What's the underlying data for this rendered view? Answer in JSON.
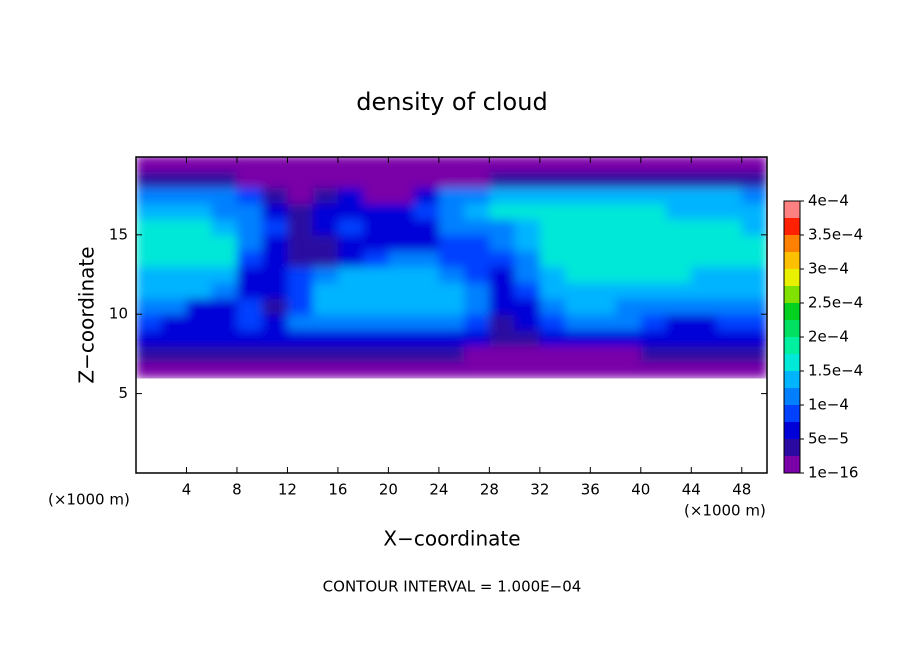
{
  "chart_data": {
    "type": "contour",
    "title": "density of cloud",
    "xlabel": "X−coordinate",
    "ylabel": "Z−coordinate",
    "xlabel_unit": "(×1000 m)",
    "ylabel_unit": "(×1000 m)",
    "note": "CONTOUR INTERVAL = 1.000E−04",
    "xlim": [
      0,
      50
    ],
    "ylim": [
      0,
      19.9
    ],
    "xticks": [
      4,
      8,
      12,
      16,
      20,
      24,
      28,
      32,
      36,
      40,
      44,
      48
    ],
    "yticks": [
      5,
      10,
      15
    ],
    "x": [
      1,
      3,
      5,
      7,
      9,
      11,
      13,
      15,
      17,
      19,
      21,
      23,
      25,
      27,
      29,
      31,
      33,
      35,
      37,
      39,
      41,
      43,
      45,
      47,
      49
    ],
    "y": [
      6.5,
      7.5,
      8.5,
      9.5,
      10.5,
      11.5,
      12.5,
      13.5,
      14.5,
      15.5,
      16.5,
      17.5,
      18.5,
      19.5
    ],
    "z": [
      [
        5e-06,
        5e-06,
        5e-06,
        5e-06,
        5e-06,
        5e-06,
        5e-06,
        5e-06,
        5e-06,
        5e-06,
        5e-06,
        5e-06,
        5e-06,
        5e-06,
        5e-06,
        5e-06,
        5e-06,
        5e-06,
        5e-06,
        5e-06,
        5e-06,
        5e-06,
        5e-06,
        5e-06,
        5e-06
      ],
      [
        3e-05,
        3e-05,
        3e-05,
        3e-05,
        3e-05,
        3e-05,
        3e-05,
        3e-05,
        3e-05,
        3e-05,
        3e-05,
        3e-05,
        3e-05,
        2e-05,
        1e-05,
        1e-05,
        1e-05,
        2e-05,
        2e-05,
        2e-05,
        3e-05,
        3e-05,
        3e-05,
        3e-05,
        3e-05
      ],
      [
        5e-05,
        5e-05,
        5e-05,
        5e-05,
        5e-05,
        5e-05,
        6e-05,
        6e-05,
        6e-05,
        6e-05,
        6e-05,
        6e-05,
        6e-05,
        5e-05,
        4e-05,
        4e-05,
        5e-05,
        5e-05,
        5e-05,
        5e-05,
        5e-05,
        5e-05,
        5e-05,
        5e-05,
        5e-05
      ],
      [
        8e-05,
        7e-05,
        6e-05,
        7e-05,
        8e-05,
        5e-05,
        0.00011,
        0.00012,
        0.00012,
        0.00012,
        0.00012,
        0.00012,
        0.00012,
        8e-05,
        4e-05,
        6e-05,
        9e-05,
        0.0001,
        0.00011,
        0.0001,
        8e-05,
        6e-05,
        7e-05,
        9e-05,
        8e-05
      ],
      [
        0.00012,
        0.0001,
        5e-05,
        6e-05,
        8e-05,
        4e-05,
        9e-05,
        0.00013,
        0.00013,
        0.00013,
        0.00013,
        0.00013,
        0.00013,
        0.00011,
        5e-05,
        7e-05,
        0.00011,
        0.00013,
        0.00013,
        0.00012,
        0.00011,
        0.0001,
        0.00011,
        0.00012,
        0.00012
      ],
      [
        0.00013,
        0.00013,
        0.00013,
        0.0001,
        6e-05,
        5e-05,
        8e-05,
        0.00013,
        0.00014,
        0.00014,
        0.00014,
        0.00014,
        0.00013,
        0.00012,
        6e-05,
        9e-05,
        0.00013,
        0.00014,
        0.00014,
        0.00013,
        0.00014,
        0.00013,
        0.00013,
        0.00013,
        0.00013
      ],
      [
        0.00014,
        0.00014,
        0.00014,
        0.00013,
        7e-05,
        6e-05,
        8e-05,
        0.0001,
        0.00013,
        0.00013,
        0.00013,
        0.00013,
        0.00011,
        9e-05,
        7e-05,
        0.0001,
        0.00014,
        0.00015,
        0.00015,
        0.00015,
        0.00015,
        0.00015,
        0.00014,
        0.00014,
        0.00014
      ],
      [
        0.00015,
        0.00016,
        0.00016,
        0.00015,
        9e-05,
        6e-05,
        4e-05,
        3e-05,
        5e-05,
        9e-05,
        0.0001,
        0.0001,
        9e-05,
        8e-05,
        8e-05,
        0.00012,
        0.00015,
        0.00016,
        0.00016,
        0.00016,
        0.00017,
        0.00016,
        0.00016,
        0.00015,
        0.00015
      ],
      [
        0.00016,
        0.00016,
        0.00016,
        0.00015,
        0.00011,
        6e-05,
        3e-05,
        3e-05,
        5e-05,
        6e-05,
        6e-05,
        7e-05,
        8e-05,
        9e-05,
        0.00011,
        0.00013,
        0.00015,
        0.00016,
        0.00017,
        0.00017,
        0.00016,
        0.00016,
        0.00015,
        0.00015,
        0.00015
      ],
      [
        0.00015,
        0.00015,
        0.00015,
        0.00014,
        0.00012,
        8e-05,
        3e-05,
        6e-05,
        8e-05,
        6e-05,
        5e-05,
        7e-05,
        0.00011,
        0.00012,
        0.00012,
        0.00014,
        0.00015,
        0.00015,
        0.00016,
        0.00016,
        0.00016,
        0.00015,
        0.00015,
        0.00015,
        0.00014
      ],
      [
        0.00013,
        0.00013,
        0.00013,
        0.00012,
        0.0001,
        7e-05,
        3e-05,
        7e-05,
        7e-05,
        5e-05,
        5e-05,
        8e-05,
        0.00012,
        0.00014,
        0.00015,
        0.00015,
        0.00015,
        0.00015,
        0.00015,
        0.00015,
        0.00015,
        0.00014,
        0.00014,
        0.00014,
        0.00013
      ],
      [
        0.00011,
        0.00012,
        0.00012,
        0.00011,
        8e-05,
        4e-05,
        2e-05,
        4e-05,
        6e-05,
        2e-05,
        2e-05,
        7e-05,
        0.0001,
        0.00012,
        0.00013,
        0.00013,
        0.00013,
        0.00014,
        0.00014,
        0.00014,
        0.00014,
        0.00013,
        0.00013,
        0.00013,
        0.00012
      ],
      [
        3e-05,
        3e-05,
        3e-05,
        3e-05,
        2e-05,
        1e-05,
        5e-06,
        5e-06,
        5e-06,
        5e-06,
        5e-06,
        1e-05,
        1e-05,
        1e-05,
        3e-05,
        4e-05,
        4e-05,
        4e-05,
        4e-05,
        4e-05,
        4e-05,
        4e-05,
        4e-05,
        4e-05,
        4e-05
      ],
      [
        1e-05,
        1e-05,
        1e-05,
        1e-05,
        1e-05,
        1e-05,
        5e-06,
        5e-06,
        5e-06,
        5e-06,
        5e-06,
        5e-06,
        5e-06,
        5e-06,
        1e-05,
        1e-05,
        1e-05,
        1e-05,
        1e-05,
        1e-05,
        1e-05,
        1e-05,
        1e-05,
        1e-05,
        1e-05
      ]
    ],
    "colorbar": {
      "levels": [
        1e-16,
        2.5e-05,
        5e-05,
        7.5e-05,
        0.0001,
        0.000125,
        0.00015,
        0.000175,
        0.0002,
        0.000225,
        0.00025,
        0.000275,
        0.0003,
        0.000325,
        0.00035,
        0.000375,
        0.0004
      ],
      "colors": [
        "#7a00a8",
        "#2a0aa0",
        "#0000d8",
        "#0040ff",
        "#0080ff",
        "#00b4ff",
        "#00e8d8",
        "#00f0a0",
        "#00e060",
        "#00d020",
        "#80e000",
        "#e8f000",
        "#ffc000",
        "#ff8000",
        "#ff2000",
        "#ff8080"
      ],
      "ticks": [
        {
          "value": 1e-16,
          "label": "1e−16"
        },
        {
          "value": 5e-05,
          "label": "5e−5"
        },
        {
          "value": 0.0001,
          "label": "1e−4"
        },
        {
          "value": 0.00015,
          "label": "1.5e−4"
        },
        {
          "value": 0.0002,
          "label": "2e−4"
        },
        {
          "value": 0.00025,
          "label": "2.5e−4"
        },
        {
          "value": 0.0003,
          "label": "3e−4"
        },
        {
          "value": 0.00035,
          "label": "3.5e−4"
        },
        {
          "value": 0.0004,
          "label": "4e−4"
        }
      ]
    }
  }
}
